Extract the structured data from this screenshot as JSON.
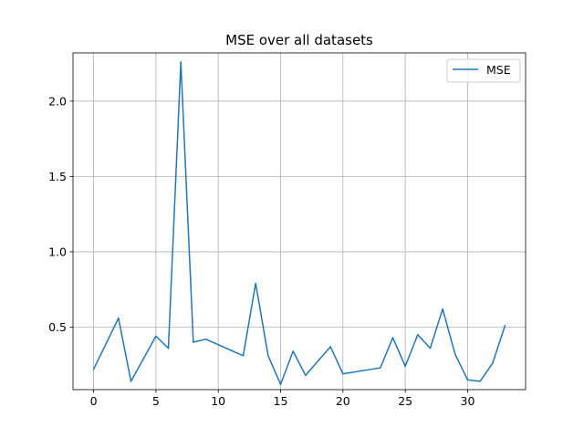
{
  "chart_data": {
    "type": "line",
    "title": "MSE over all datasets",
    "xlabel": "",
    "ylabel": "",
    "xlim": [
      -1.65,
      34.65
    ],
    "ylim": [
      0.085,
      2.32
    ],
    "xticks": [
      0,
      5,
      10,
      15,
      20,
      25,
      30
    ],
    "yticks": [
      0.5,
      1.0,
      1.5,
      2.0
    ],
    "ytick_labels": [
      "0.5",
      "1.0",
      "1.5",
      "2.0"
    ],
    "grid": true,
    "legend_position": "top-right",
    "series": [
      {
        "name": "MSE",
        "color": "#1f77b4",
        "x": [
          0,
          2,
          3,
          5,
          6,
          7,
          8,
          9,
          12,
          13,
          14,
          15,
          16,
          17,
          19,
          20,
          23,
          24,
          25,
          26,
          27,
          28,
          29,
          30,
          31,
          32,
          33
        ],
        "y": [
          0.22,
          0.56,
          0.14,
          0.44,
          0.36,
          2.26,
          0.4,
          0.42,
          0.31,
          0.79,
          0.31,
          0.12,
          0.34,
          0.18,
          0.37,
          0.19,
          0.23,
          0.43,
          0.24,
          0.45,
          0.36,
          0.62,
          0.32,
          0.15,
          0.14,
          0.26,
          0.51
        ]
      }
    ]
  }
}
